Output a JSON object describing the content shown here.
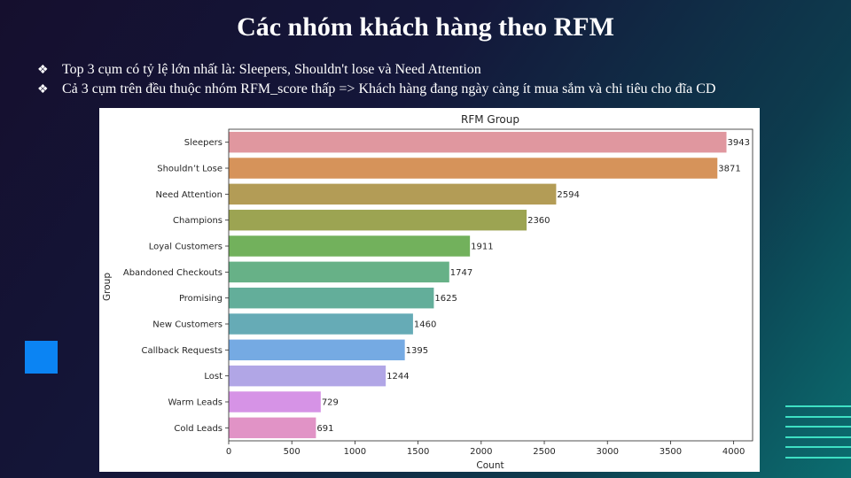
{
  "slide": {
    "title": "Các nhóm khách hàng theo RFM",
    "bullets": [
      {
        "marker": "❖",
        "text": "Top 3 cụm có tỷ lệ lớn nhất là: Sleepers, Shouldn't lose và Need Attention"
      },
      {
        "marker": "❖",
        "text": " Cả 3 cụm trên đều thuộc nhóm RFM_score thấp => Khách hàng đang ngày càng ít mua sắm và chi tiêu cho đĩa CD"
      }
    ]
  },
  "chart_data": {
    "type": "bar",
    "orientation": "horizontal",
    "title": "RFM Group",
    "xlabel": "Count",
    "ylabel": "Group",
    "xlim": [
      0,
      4150
    ],
    "xticks": [
      0,
      500,
      1000,
      1500,
      2000,
      2500,
      3000,
      3500,
      4000
    ],
    "grid": false,
    "categories": [
      "Sleepers",
      "Shouldn’t Lose",
      "Need Attention",
      "Champions",
      "Loyal Customers",
      "Abandoned Checkouts",
      "Promising",
      "New Customers",
      "Callback Requests",
      "Lost",
      "Warm Leads",
      "Cold Leads"
    ],
    "values": [
      3943,
      3871,
      2594,
      2360,
      1911,
      1747,
      1625,
      1460,
      1395,
      1244,
      729,
      691
    ],
    "bar_labels": [
      "3943",
      "3871",
      "2594",
      "2360",
      "1911",
      "1747",
      "1625",
      "1460",
      "1395",
      "1244",
      "729",
      "691"
    ],
    "colors": [
      "#e0979f",
      "#d6935a",
      "#b39c56",
      "#9ca452",
      "#72b15c",
      "#67b187",
      "#63ae9a",
      "#66abb6",
      "#75aae3",
      "#b1a6e6",
      "#d693e6",
      "#e193c6"
    ]
  }
}
